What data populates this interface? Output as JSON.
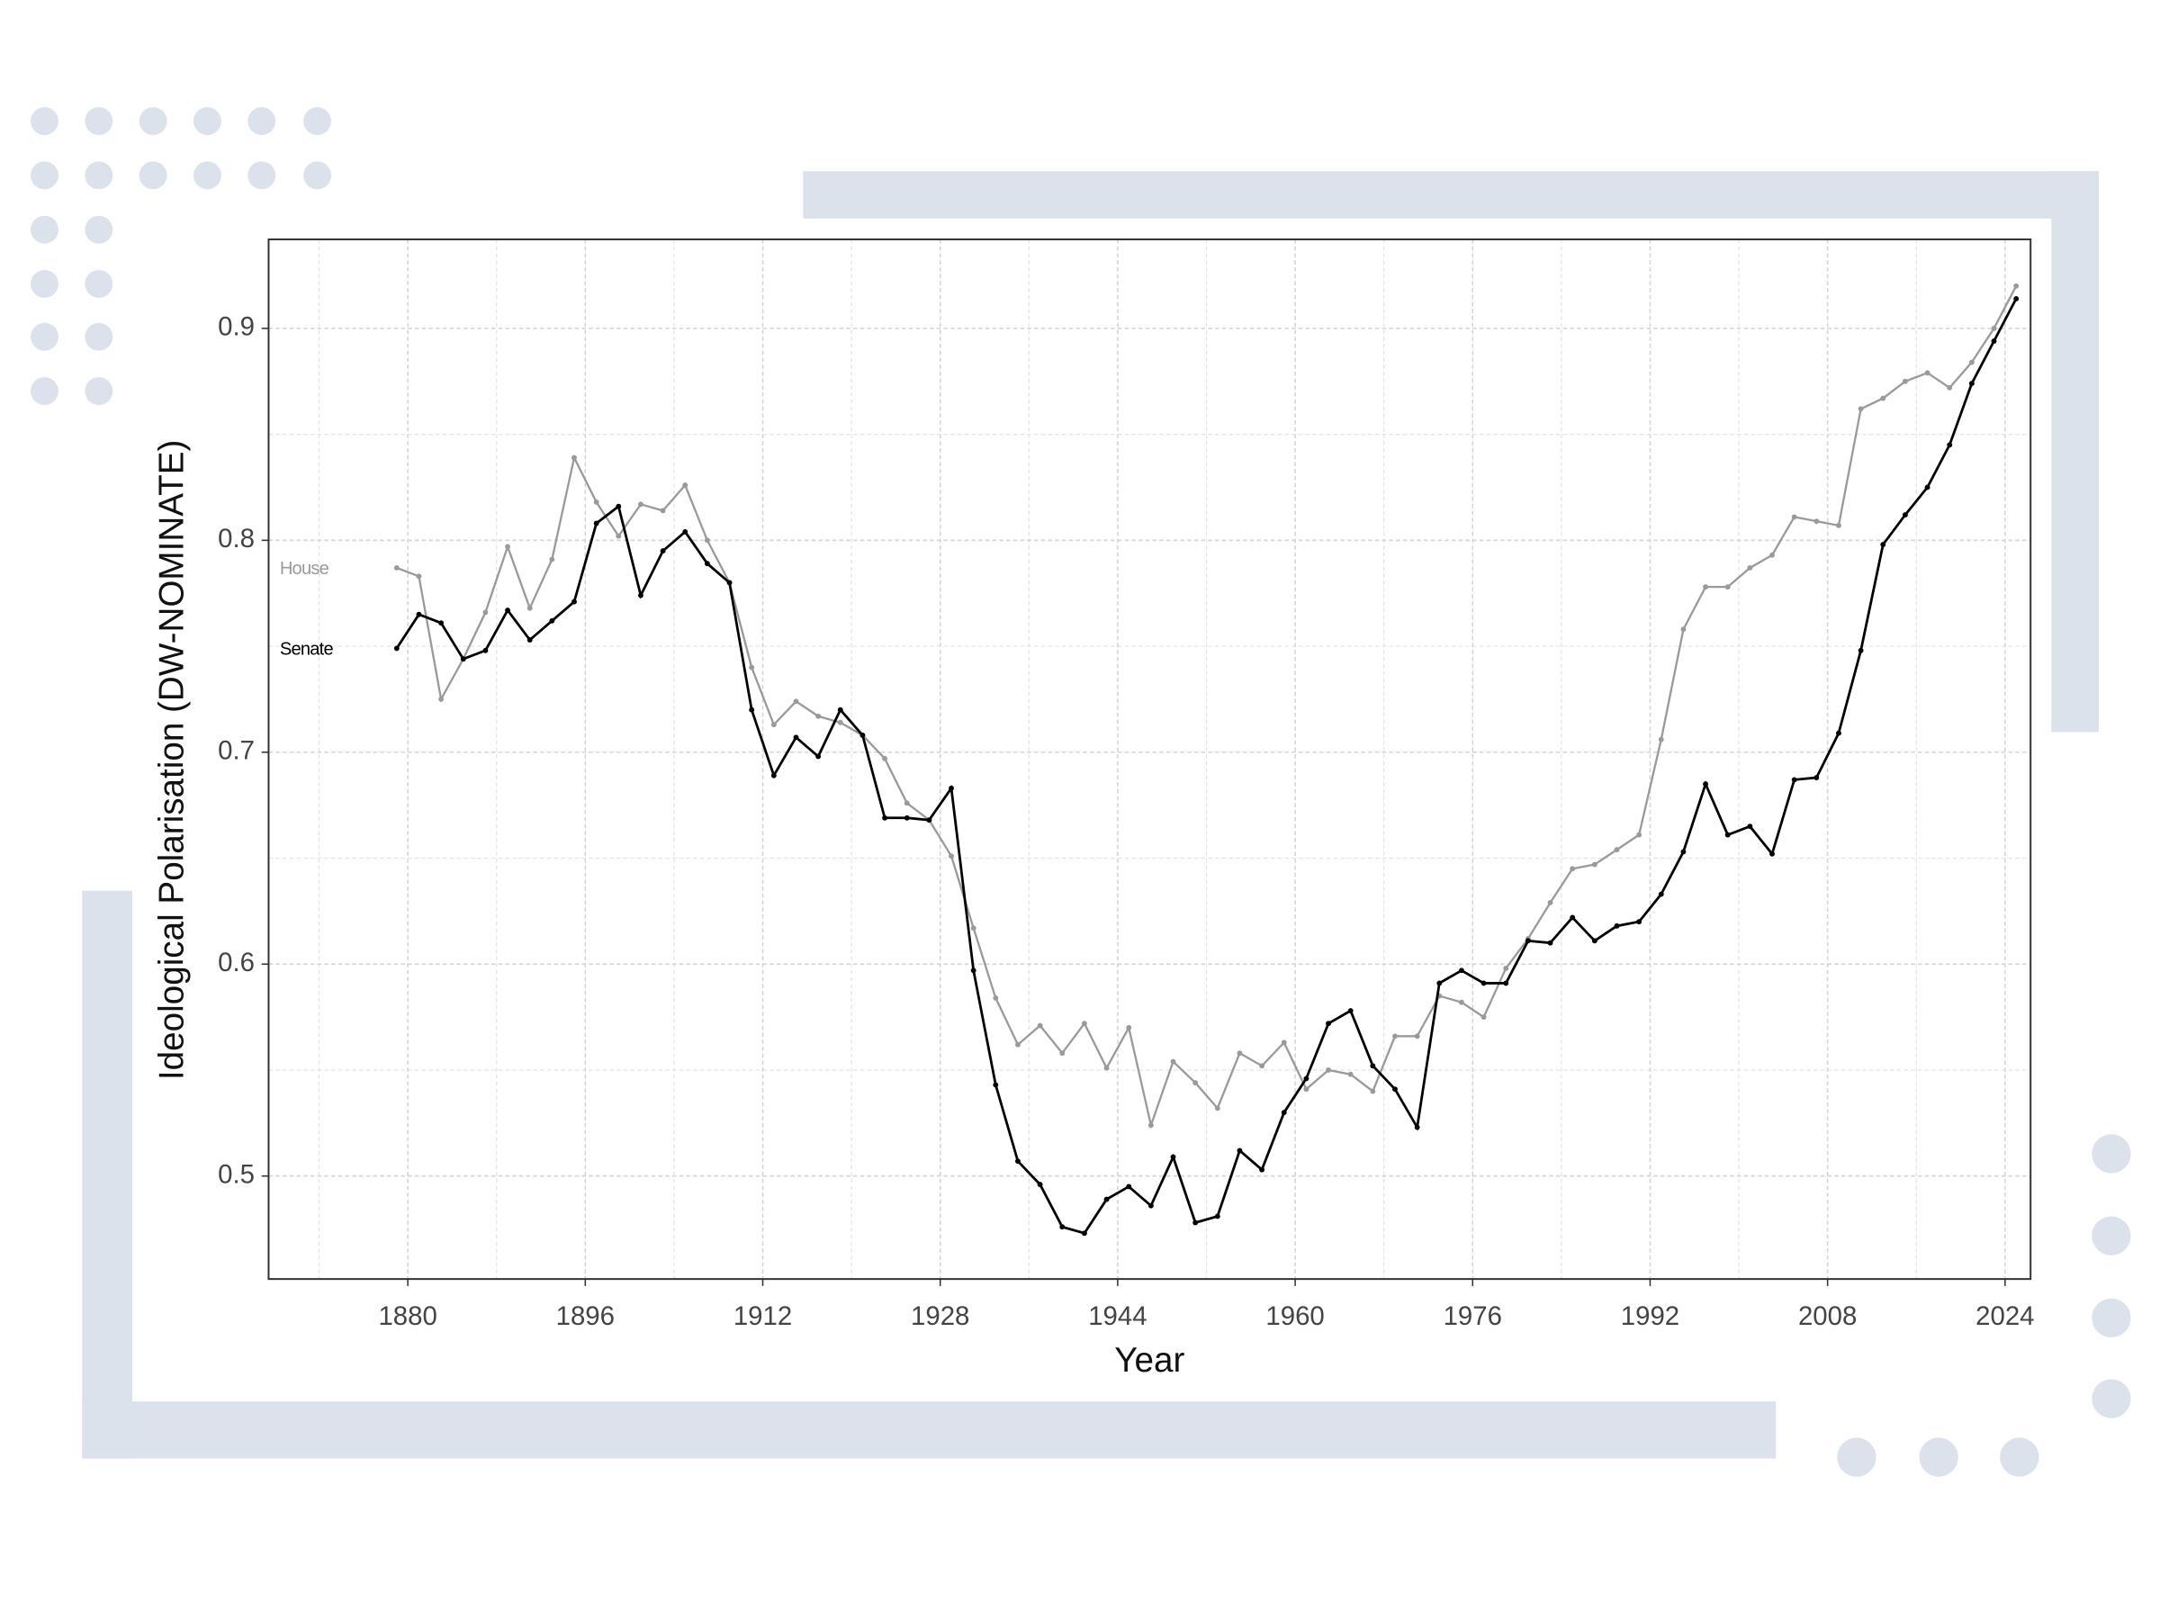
{
  "chart_data": {
    "type": "line",
    "x_label": "Year",
    "y_label": "Ideological Polarisation (DW-NOMINATE)",
    "x": [
      1879,
      1881,
      1883,
      1885,
      1887,
      1889,
      1891,
      1893,
      1895,
      1897,
      1899,
      1901,
      1903,
      1905,
      1907,
      1909,
      1911,
      1913,
      1915,
      1917,
      1919,
      1921,
      1923,
      1925,
      1927,
      1929,
      1931,
      1933,
      1935,
      1937,
      1939,
      1941,
      1943,
      1945,
      1947,
      1949,
      1951,
      1953,
      1955,
      1957,
      1959,
      1961,
      1963,
      1965,
      1967,
      1969,
      1971,
      1973,
      1975,
      1977,
      1979,
      1981,
      1983,
      1985,
      1987,
      1989,
      1991,
      1993,
      1995,
      1997,
      1999,
      2001,
      2003,
      2005,
      2007,
      2009,
      2011,
      2013,
      2015,
      2017,
      2019,
      2021,
      2023,
      2025
    ],
    "series": [
      {
        "name": "House",
        "color": "#9a9a9a",
        "values": [
          0.787,
          0.783,
          0.725,
          0.744,
          0.766,
          0.797,
          0.768,
          0.791,
          0.839,
          0.818,
          0.802,
          0.817,
          0.814,
          0.826,
          0.8,
          0.78,
          0.74,
          0.713,
          0.724,
          0.717,
          0.714,
          0.708,
          0.697,
          0.676,
          0.668,
          0.651,
          0.617,
          0.584,
          0.562,
          0.571,
          0.558,
          0.572,
          0.551,
          0.57,
          0.524,
          0.554,
          0.544,
          0.532,
          0.558,
          0.552,
          0.563,
          0.541,
          0.55,
          0.548,
          0.54,
          0.566,
          0.566,
          0.585,
          0.582,
          0.575,
          0.598,
          0.612,
          0.629,
          0.645,
          0.647,
          0.654,
          0.661,
          0.706,
          0.758,
          0.778,
          0.778,
          0.787,
          0.793,
          0.811,
          0.809,
          0.807,
          0.862,
          0.867,
          0.875,
          0.879,
          0.872,
          0.884,
          0.9,
          0.92
        ]
      },
      {
        "name": "Senate",
        "color": "#000000",
        "values": [
          0.749,
          0.765,
          0.761,
          0.744,
          0.748,
          0.767,
          0.753,
          0.762,
          0.771,
          0.808,
          0.816,
          0.774,
          0.795,
          0.804,
          0.789,
          0.78,
          0.72,
          0.689,
          0.707,
          0.698,
          0.72,
          0.708,
          0.669,
          0.669,
          0.668,
          0.683,
          0.597,
          0.543,
          0.507,
          0.496,
          0.476,
          0.473,
          0.489,
          0.495,
          0.486,
          0.509,
          0.478,
          0.481,
          0.512,
          0.503,
          0.53,
          0.546,
          0.572,
          0.578,
          0.552,
          0.541,
          0.523,
          0.591,
          0.597,
          0.591,
          0.591,
          0.611,
          0.61,
          0.622,
          0.611,
          0.618,
          0.62,
          0.633,
          0.653,
          0.685,
          0.661,
          0.665,
          0.652,
          0.687,
          0.688,
          0.709,
          0.748,
          0.798,
          0.812,
          0.825,
          0.845,
          0.874,
          0.894,
          0.914
        ]
      }
    ],
    "xlim": [
      1867.45,
      2026.3
    ],
    "ylim": [
      0.4514,
      0.942
    ],
    "xticks": [
      1880,
      1896,
      1912,
      1928,
      1944,
      1960,
      1976,
      1992,
      2008,
      2024
    ],
    "yticks": [
      0.5,
      0.6,
      0.7,
      0.8,
      0.9
    ],
    "x_minor_ticks": [
      1872,
      1888,
      1904,
      1920,
      1936,
      1952,
      1968,
      1984,
      2000,
      2016
    ],
    "y_minor_ticks": [
      0.55,
      0.65,
      0.75,
      0.85
    ],
    "grid": true,
    "legend": "direct"
  }
}
